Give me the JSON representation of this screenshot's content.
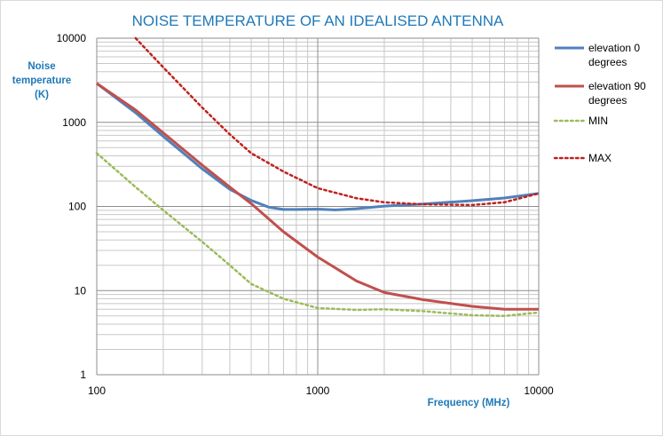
{
  "chart_data": {
    "type": "line",
    "title": "NOISE TEMPERATURE OF AN IDEALISED ANTENNA",
    "xlabel": "Frequency (MHz)",
    "ylabel": [
      "Noise",
      "temperature",
      "(K)"
    ],
    "x_scale": "log",
    "y_scale": "log",
    "xlim": [
      100,
      10000
    ],
    "ylim": [
      1,
      10000
    ],
    "x_ticks": [
      "100",
      "1000",
      "10000"
    ],
    "y_ticks": [
      "1",
      "10",
      "100",
      "1000",
      "10000"
    ],
    "grid": true,
    "legend_position": "right",
    "series": [
      {
        "name": [
          "elevation 0",
          "degrees"
        ],
        "color": "#4f81bd",
        "style": "solid",
        "points": [
          [
            100,
            2900
          ],
          [
            150,
            1300
          ],
          [
            200,
            680
          ],
          [
            300,
            280
          ],
          [
            400,
            160
          ],
          [
            500,
            118
          ],
          [
            600,
            98
          ],
          [
            700,
            92
          ],
          [
            800,
            92
          ],
          [
            1000,
            93
          ],
          [
            1200,
            91
          ],
          [
            1500,
            94
          ],
          [
            2000,
            101
          ],
          [
            3000,
            107
          ],
          [
            5000,
            117
          ],
          [
            7000,
            126
          ],
          [
            10000,
            143
          ]
        ]
      },
      {
        "name": [
          "elevation 90",
          "degrees"
        ],
        "color": "#c0504d",
        "style": "solid",
        "points": [
          [
            100,
            2900
          ],
          [
            150,
            1400
          ],
          [
            200,
            750
          ],
          [
            300,
            310
          ],
          [
            400,
            170
          ],
          [
            500,
            108
          ],
          [
            700,
            50
          ],
          [
            1000,
            25
          ],
          [
            1500,
            13
          ],
          [
            2000,
            9.5
          ],
          [
            3000,
            7.8
          ],
          [
            5000,
            6.5
          ],
          [
            7000,
            6.0
          ],
          [
            10000,
            6.0
          ]
        ]
      },
      {
        "name": [
          "MIN"
        ],
        "color": "#9bbb59",
        "style": "dotted",
        "points": [
          [
            100,
            430
          ],
          [
            150,
            170
          ],
          [
            200,
            90
          ],
          [
            300,
            38
          ],
          [
            400,
            20
          ],
          [
            500,
            12
          ],
          [
            700,
            8.0
          ],
          [
            1000,
            6.2
          ],
          [
            1500,
            5.9
          ],
          [
            2000,
            6.0
          ],
          [
            3000,
            5.7
          ],
          [
            5000,
            5.1
          ],
          [
            7000,
            5.0
          ],
          [
            10000,
            5.5
          ]
        ]
      },
      {
        "name": [
          "MAX"
        ],
        "color": "#c0221e",
        "style": "dotted",
        "points": [
          [
            150,
            10000
          ],
          [
            200,
            4500
          ],
          [
            300,
            1500
          ],
          [
            400,
            720
          ],
          [
            500,
            430
          ],
          [
            700,
            260
          ],
          [
            1000,
            165
          ],
          [
            1500,
            125
          ],
          [
            2000,
            112
          ],
          [
            3000,
            106
          ],
          [
            5000,
            104
          ],
          [
            7000,
            112
          ],
          [
            10000,
            143
          ]
        ]
      }
    ]
  }
}
